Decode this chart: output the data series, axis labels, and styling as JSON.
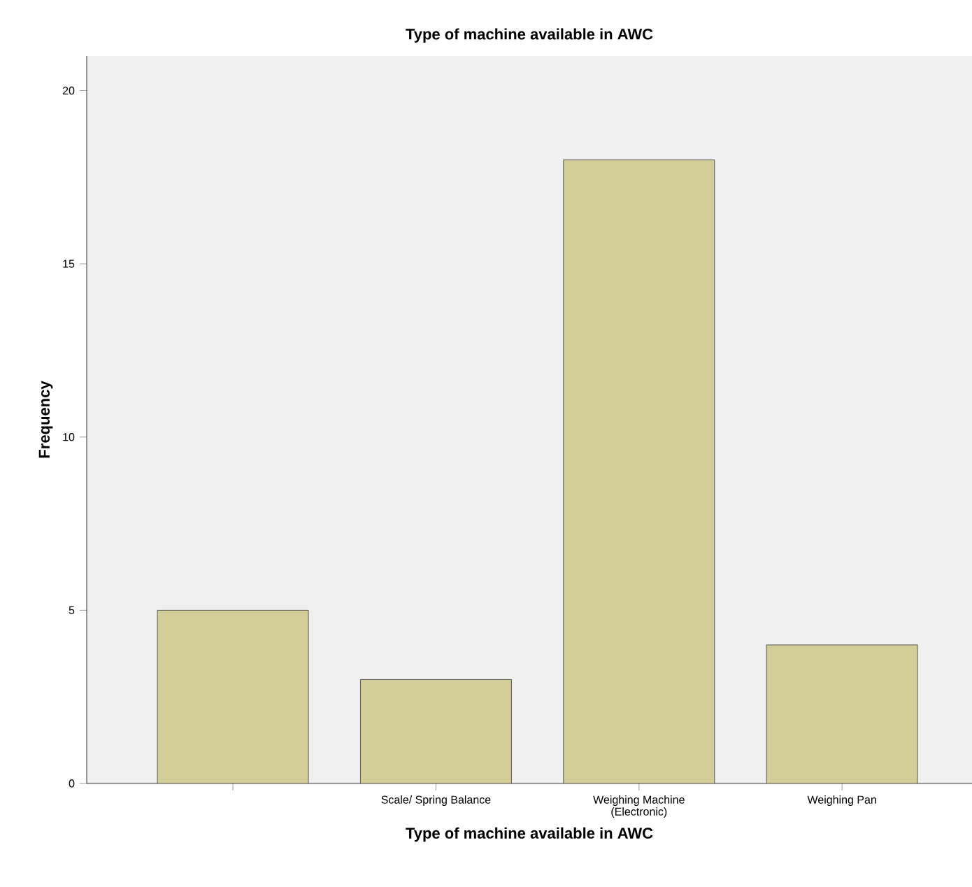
{
  "chart_data": {
    "type": "bar",
    "title": "Type of machine available in AWC",
    "xlabel": "Type of machine available in AWC",
    "ylabel": "Frequency",
    "categories": [
      null,
      "Scale/ Spring Balance",
      "Weighing Machine (Electronic)",
      "Weighing Pan"
    ],
    "values": [
      5,
      3,
      18,
      4
    ],
    "color": "#d3ce97",
    "ylim": [
      0,
      21
    ],
    "yticks": [
      0,
      5,
      10,
      15,
      20
    ],
    "grid": false
  }
}
